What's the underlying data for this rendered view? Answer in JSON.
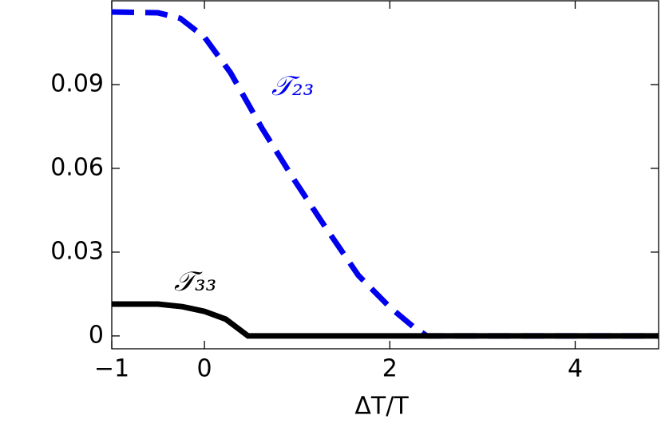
{
  "chart_data": {
    "type": "line",
    "x_label": "ΔT/T",
    "xlim": [
      -1,
      4.9
    ],
    "ylim": [
      -0.0046,
      0.12
    ],
    "xticks": [
      {
        "value": -1,
        "label": "−1"
      },
      0,
      2,
      4
    ],
    "yticks": [
      0,
      0.03,
      0.06,
      0.09
    ],
    "series": [
      {
        "name": "𝒯₂₃",
        "color": "#0000ee",
        "dash": true,
        "x": [
          -1,
          -0.5,
          -0.26,
          0,
          0.28,
          0.62,
          0.97,
          1.31,
          1.66,
          2,
          2.26,
          2.4,
          4.9
        ],
        "values": [
          0.116,
          0.1157,
          0.1137,
          0.107,
          0.0943,
          0.0744,
          0.0558,
          0.0387,
          0.0217,
          0.0103,
          0.0031,
          0,
          0
        ]
      },
      {
        "name": "𝒯₃₃",
        "color": "#000000",
        "dash": false,
        "x": [
          -1,
          -0.5,
          -0.24,
          0,
          0.23,
          0.47,
          4.9
        ],
        "values": [
          0.0114,
          0.0114,
          0.0105,
          0.0088,
          0.006,
          0,
          0
        ]
      }
    ]
  }
}
